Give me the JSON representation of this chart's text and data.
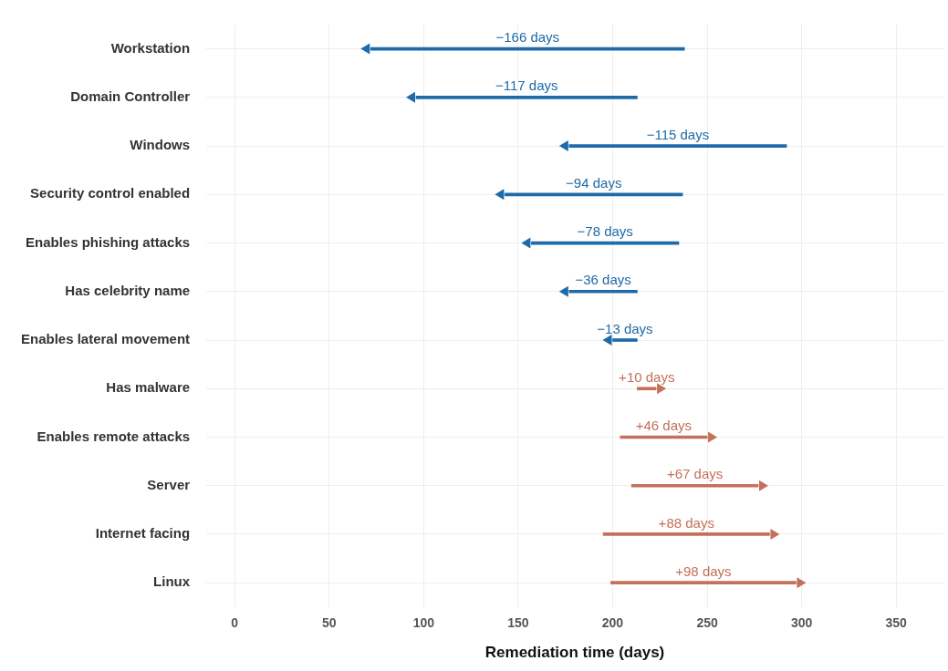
{
  "chart_data": {
    "type": "bar",
    "orientation": "horizontal",
    "xlabel": "Remediation time (days)",
    "categories": [
      "Workstation",
      "Domain Controller",
      "Windows",
      "Security control enabled",
      "Enables phishing attacks",
      "Has celebrity name",
      "Enables lateral movement",
      "Has malware",
      "Enables remote attacks",
      "Server",
      "Internet facing",
      "Linux"
    ],
    "base": [
      238,
      213,
      292,
      237,
      235,
      213,
      213,
      213,
      204,
      210,
      195,
      199
    ],
    "values": [
      -166,
      -117,
      -115,
      -94,
      -78,
      -36,
      -13,
      10,
      46,
      67,
      88,
      98
    ],
    "value_labels": [
      "−166 days",
      "−117 days",
      "−115 days",
      "−94 days",
      "−78 days",
      "−36 days",
      "−13 days",
      "+10 days",
      "+46 days",
      "+67 days",
      "+88 days",
      "+98 days"
    ],
    "colors": [
      "#1f6aa8",
      "#1f6aa8",
      "#1f6aa8",
      "#1f6aa8",
      "#1f6aa8",
      "#1f6aa8",
      "#1f6aa8",
      "#c4705a",
      "#c4705a",
      "#c4705a",
      "#c4705a",
      "#c4705a"
    ],
    "xlim": [
      -15,
      375
    ],
    "xticks": [
      0,
      50,
      100,
      150,
      200,
      250,
      300,
      350
    ],
    "grid": true
  }
}
